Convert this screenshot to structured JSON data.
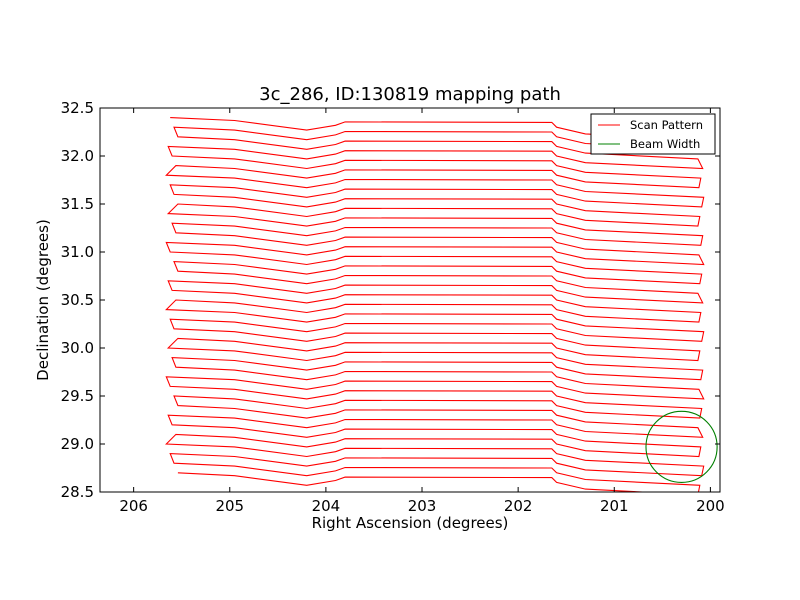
{
  "chart_data": {
    "type": "line",
    "title": "3c_286, ID:130819 mapping path",
    "xlabel": "Right Ascension (degrees)",
    "ylabel": "Declination (degrees)",
    "xlim": [
      206.35,
      199.9
    ],
    "ylim": [
      28.5,
      32.5
    ],
    "x_inverted": true,
    "x_ticks": [
      "206",
      "205",
      "204",
      "203",
      "202",
      "201",
      "200"
    ],
    "y_ticks": [
      "28.5",
      "29.0",
      "29.5",
      "30.0",
      "30.5",
      "31.0",
      "31.5",
      "32.0",
      "32.5"
    ],
    "grid": false,
    "legend_position": "top-right",
    "series": [
      {
        "name": "Scan Pattern",
        "color": "#ff0000",
        "pattern": "raster",
        "ra_east_edge": 205.6,
        "ra_west_edge": 200.1,
        "dec_start": 28.65,
        "dec_end": 32.38,
        "dec_step": 0.1,
        "ra_kinks": [
          204.95,
          203.9,
          201.6
        ]
      },
      {
        "name": "Beam Width",
        "color": "#008000",
        "center": [
          200.3,
          28.97
        ],
        "radius_deg": 0.37
      }
    ]
  }
}
